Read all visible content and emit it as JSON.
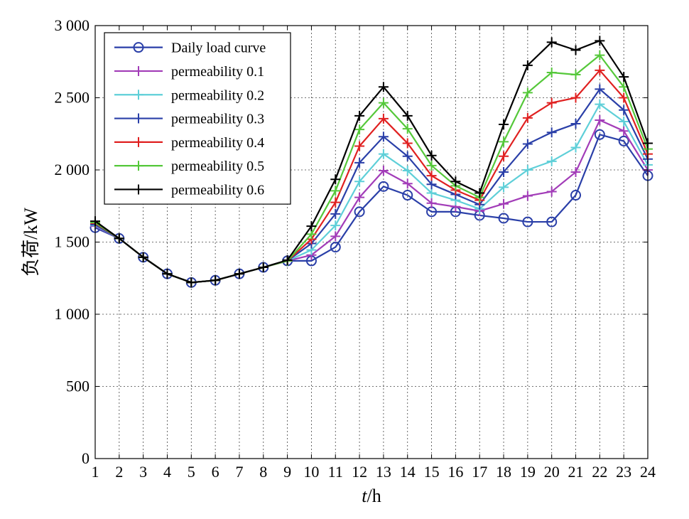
{
  "chart_data": {
    "type": "line",
    "xlabel_italic": "t",
    "xlabel_unit": "/h",
    "ylabel": "负荷/kW",
    "xlim": [
      1,
      24
    ],
    "ylim": [
      0,
      3000
    ],
    "grid": true,
    "legend_position": "top-left",
    "x": [
      1,
      2,
      3,
      4,
      5,
      6,
      7,
      8,
      9,
      10,
      11,
      12,
      13,
      14,
      15,
      16,
      17,
      18,
      19,
      20,
      21,
      22,
      23,
      24
    ],
    "x_tick_labels": [
      "1",
      "2",
      "3",
      "4",
      "5",
      "6",
      "7",
      "8",
      "9",
      "10",
      "11",
      "12",
      "13",
      "14",
      "15",
      "16",
      "17",
      "18",
      "19",
      "20",
      "21",
      "22",
      "23",
      "24"
    ],
    "y_ticks": [
      0,
      500,
      1000,
      1500,
      2000,
      2500,
      3000
    ],
    "y_tick_labels": [
      "0",
      "500",
      "1 000",
      "1 500",
      "2 000",
      "2 500",
      "3 000"
    ],
    "series": [
      {
        "name": "Daily load curve",
        "color": "#2a3fa8",
        "marker": "circle",
        "values": [
          1600,
          1525,
          1395,
          1280,
          1220,
          1235,
          1280,
          1325,
          1370,
          1370,
          1465,
          1710,
          1885,
          1825,
          1710,
          1710,
          1685,
          1665,
          1640,
          1640,
          1825,
          2245,
          2200,
          1960
        ]
      },
      {
        "name": "permeability 0.1",
        "color": "#a23cb8",
        "marker": "plus",
        "values": [
          1610,
          1525,
          1395,
          1280,
          1220,
          1235,
          1280,
          1325,
          1370,
          1410,
          1540,
          1810,
          1995,
          1905,
          1770,
          1745,
          1715,
          1765,
          1820,
          1850,
          1985,
          2345,
          2270,
          2000
        ]
      },
      {
        "name": "permeability 0.2",
        "color": "#5ecfd8",
        "marker": "plus",
        "values": [
          1615,
          1525,
          1395,
          1280,
          1220,
          1235,
          1280,
          1325,
          1370,
          1445,
          1615,
          1920,
          2110,
          1995,
          1840,
          1790,
          1730,
          1880,
          2000,
          2060,
          2155,
          2455,
          2335,
          2035
        ]
      },
      {
        "name": "permeability 0.3",
        "color": "#2a3fa8",
        "marker": "plus",
        "values": [
          1620,
          1525,
          1395,
          1280,
          1220,
          1235,
          1280,
          1325,
          1370,
          1490,
          1695,
          2050,
          2230,
          2095,
          1900,
          1830,
          1760,
          1985,
          2180,
          2260,
          2320,
          2560,
          2415,
          2075
        ]
      },
      {
        "name": "permeability 0.4",
        "color": "#e02020",
        "marker": "plus",
        "values": [
          1630,
          1525,
          1395,
          1280,
          1220,
          1235,
          1280,
          1325,
          1370,
          1520,
          1775,
          2165,
          2355,
          2185,
          1960,
          1860,
          1790,
          2095,
          2360,
          2465,
          2500,
          2690,
          2500,
          2110
        ]
      },
      {
        "name": "permeability 0.5",
        "color": "#55c83a",
        "marker": "plus",
        "values": [
          1635,
          1525,
          1395,
          1280,
          1220,
          1235,
          1280,
          1325,
          1370,
          1555,
          1855,
          2280,
          2465,
          2285,
          2030,
          1890,
          1810,
          2195,
          2535,
          2675,
          2660,
          2795,
          2575,
          2145
        ]
      },
      {
        "name": "permeability 0.6",
        "color": "#000000",
        "marker": "plus",
        "values": [
          1645,
          1525,
          1395,
          1280,
          1220,
          1235,
          1280,
          1325,
          1375,
          1610,
          1935,
          2375,
          2575,
          2375,
          2100,
          1920,
          1840,
          2315,
          2725,
          2885,
          2830,
          2895,
          2645,
          2185
        ]
      }
    ]
  }
}
